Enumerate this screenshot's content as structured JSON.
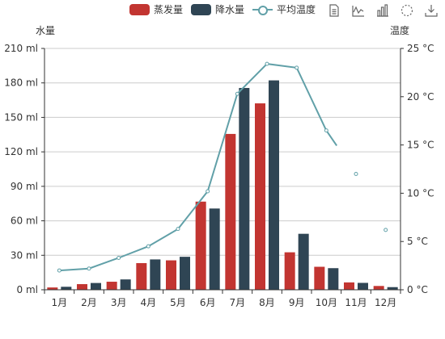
{
  "legend": {
    "items": [
      {
        "name": "蒸发量",
        "color": "#c23531"
      },
      {
        "name": "降水量",
        "color": "#2f4554"
      },
      {
        "name": "平均温度",
        "color": "#61a0a8"
      }
    ]
  },
  "toolbox": {
    "icons": [
      "data-view-icon",
      "line-chart-icon",
      "bar-chart-icon",
      "restore-icon",
      "save-image-icon"
    ]
  },
  "chart_data": {
    "type": "bar",
    "categories": [
      "1月",
      "2月",
      "3月",
      "4月",
      "5月",
      "6月",
      "7月",
      "8月",
      "9月",
      "10月",
      "11月",
      "12月"
    ],
    "series": [
      {
        "name": "蒸发量",
        "type": "bar",
        "color": "#c23531",
        "values": [
          2.0,
          4.9,
          7.0,
          23.2,
          25.6,
          76.7,
          135.6,
          162.2,
          32.6,
          20.0,
          6.4,
          3.3
        ]
      },
      {
        "name": "降水量",
        "type": "bar",
        "color": "#2f4554",
        "values": [
          2.6,
          5.9,
          9.0,
          26.4,
          28.7,
          70.7,
          175.6,
          182.2,
          48.7,
          18.8,
          6.0,
          2.3
        ]
      },
      {
        "name": "平均温度",
        "type": "line",
        "color": "#61a0a8",
        "axis": "right",
        "values": [
          2.0,
          2.2,
          3.3,
          4.5,
          6.3,
          10.2,
          20.3,
          23.4,
          23.0,
          16.5,
          12.0,
          6.2
        ]
      }
    ],
    "left_axis": {
      "label": "水量",
      "min": 0,
      "max": 210,
      "interval": 30,
      "ticks": [
        "0 ml",
        "30 ml",
        "60 ml",
        "90 ml",
        "120 ml",
        "150 ml",
        "180 ml",
        "210 ml"
      ]
    },
    "right_axis": {
      "label": "温度",
      "min": 0,
      "max": 25,
      "interval": 5,
      "ticks": [
        "0 °C",
        "5 °C",
        "10 °C",
        "15 °C",
        "20 °C",
        "25 °C"
      ]
    },
    "grid": true
  }
}
